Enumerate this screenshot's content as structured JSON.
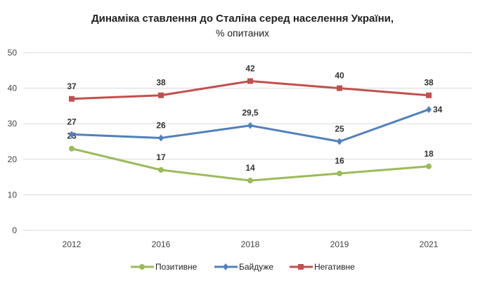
{
  "chart_data": {
    "type": "line",
    "title": "Динаміка ставлення до Сталіна серед населення України,",
    "subtitle": "% опитаних",
    "categories": [
      "2012",
      "2016",
      "2018",
      "2019",
      "2021"
    ],
    "ylim": [
      0,
      50
    ],
    "yticks": [
      "0",
      "10",
      "20",
      "30",
      "40",
      "50"
    ],
    "grid": true,
    "legend_position": "bottom",
    "series": [
      {
        "name": "Позитивне",
        "color": "#9BBB59",
        "marker": "circle",
        "values": [
          23,
          17,
          14,
          16,
          18
        ],
        "labels": [
          "23",
          "17",
          "14",
          "16",
          "18"
        ]
      },
      {
        "name": "Байдуже",
        "color": "#4F81BD",
        "marker": "diamond",
        "values": [
          27,
          26,
          29.5,
          25,
          34
        ],
        "labels": [
          "27",
          "26",
          "29,5",
          "25",
          "34"
        ]
      },
      {
        "name": "Негативне",
        "color": "#C0504D",
        "marker": "square",
        "values": [
          37,
          38,
          42,
          40,
          38
        ],
        "labels": [
          "37",
          "38",
          "42",
          "40",
          "38"
        ]
      }
    ]
  }
}
